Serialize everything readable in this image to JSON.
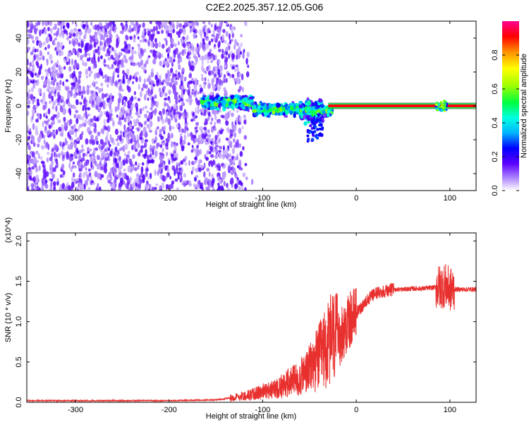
{
  "title": "C2E2.2025.357.12.05.G06",
  "chart_data": [
    {
      "type": "heatmap",
      "xlabel": "Height of straight line (km)",
      "ylabel": "Frequency (Hz)",
      "xlim": [
        -352,
        128
      ],
      "ylim": [
        -50,
        50
      ],
      "xticks": [
        -300,
        -200,
        -100,
        0,
        100
      ],
      "yticks": [
        -40,
        -20,
        0,
        20,
        40
      ],
      "colorbar": {
        "label": "Normalized spectral amplitude",
        "range": [
          0,
          1
        ],
        "ticks": [
          "0.0",
          "0.2",
          "0.4",
          "0.6",
          "0.8"
        ],
        "tick_values": [
          0.0,
          0.2,
          0.4,
          0.6,
          0.8
        ]
      },
      "regions": [
        {
          "x": [
            -352,
            -140
          ],
          "y": [
            -50,
            50
          ],
          "amplitude": 0.1,
          "pattern": "noise"
        },
        {
          "x": [
            -165,
            -30
          ],
          "y": [
            -20,
            10
          ],
          "amplitude": 0.45,
          "pattern": "scatter"
        },
        {
          "x": [
            -30,
            128
          ],
          "y": [
            0,
            0
          ],
          "amplitude": 0.95,
          "pattern": "line"
        }
      ]
    },
    {
      "type": "line",
      "xlabel": "Height of straight line (km)",
      "ylabel": "SNR (10 * v/v)",
      "y_multiplier": "(x10^4)",
      "xlim": [
        -352,
        128
      ],
      "ylim": [
        0,
        2.1
      ],
      "xticks": [
        -300,
        -200,
        -100,
        0,
        100
      ],
      "yticks": [
        "0.0",
        "0.5",
        "1.0",
        "1.5",
        "2.0"
      ],
      "ytick_values": [
        0,
        0.5,
        1.0,
        1.5,
        2.0
      ],
      "series": [
        {
          "color": "#e8302e",
          "x": [
            -352,
            -300,
            -250,
            -200,
            -150,
            -130,
            -120,
            -110,
            -100,
            -90,
            -80,
            -70,
            -60,
            -50,
            -40,
            -30,
            -25,
            -20,
            -15,
            -10,
            -5,
            0,
            10,
            20,
            30,
            40,
            50,
            60,
            70,
            80,
            90,
            95,
            100,
            110,
            128
          ],
          "values": [
            0.02,
            0.02,
            0.02,
            0.02,
            0.03,
            0.06,
            0.08,
            0.1,
            0.13,
            0.15,
            0.2,
            0.25,
            0.3,
            0.4,
            0.55,
            0.7,
            0.8,
            0.75,
            0.85,
            0.95,
            1.05,
            1.1,
            1.25,
            1.35,
            1.38,
            1.4,
            1.4,
            1.41,
            1.41,
            1.42,
            1.43,
            1.45,
            1.4,
            1.4,
            1.4
          ]
        }
      ]
    }
  ]
}
